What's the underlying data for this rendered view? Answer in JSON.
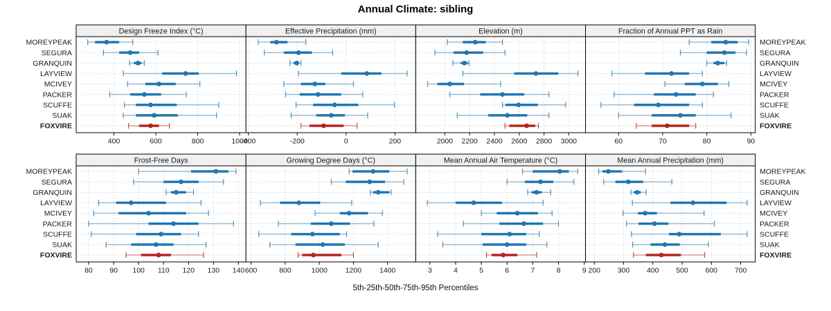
{
  "title": "Annual Climate: sibling",
  "xlabel": "5th-25th-50th-75th-95th Percentiles",
  "sites": [
    "MOREYPEAK",
    "SEGURA",
    "GRANQUIN",
    "LAYVIEW",
    "MCIVEY",
    "PACKER",
    "SCUFFE",
    "SUAK",
    "FOXVIRE"
  ],
  "highlight_site": "FOXVIRE",
  "colors": {
    "series": "#1f77b4",
    "highlight": "#b3251e",
    "header_bg": "#f0f0f0",
    "panel_border": "#000000",
    "grid": "#c9c9c9",
    "text": "#1a1a1a"
  },
  "chart_data": {
    "type": "trellis-dotplot-percentiles",
    "percentile_labels": [
      "5th",
      "25th",
      "50th",
      "75th",
      "95th"
    ],
    "panels": [
      {
        "id": "design-freeze-index",
        "title": "Design Freeze Index (°C)",
        "grid_row": 0,
        "grid_col": 0,
        "xlim": [
          220,
          1030
        ],
        "ticks": [
          400,
          600,
          800,
          1000
        ],
        "values": {
          "MOREYPEAK": [
            275,
            310,
            365,
            425,
            490
          ],
          "SEGURA": [
            350,
            425,
            478,
            520,
            610
          ],
          "GRANQUIN": [
            475,
            495,
            515,
            532,
            545
          ],
          "LAYVIEW": [
            445,
            630,
            742,
            805,
            985
          ],
          "MCIVEY": [
            465,
            550,
            615,
            695,
            810
          ],
          "PACKER": [
            380,
            478,
            545,
            625,
            745
          ],
          "SCUFFE": [
            450,
            505,
            575,
            700,
            900
          ],
          "SUAK": [
            445,
            505,
            592,
            705,
            890
          ],
          "FOXVIRE": [
            470,
            520,
            575,
            615,
            665
          ]
        }
      },
      {
        "id": "effective-precipitation",
        "title": "Effective Precipitation (mm)",
        "grid_row": 0,
        "grid_col": 1,
        "xlim": [
          -410,
          285
        ],
        "ticks": [
          -400,
          -200,
          0,
          200
        ],
        "values": {
          "MOREYPEAK": [
            -360,
            -310,
            -285,
            -240,
            -165
          ],
          "SEGURA": [
            -335,
            -255,
            -195,
            -140,
            -55
          ],
          "GRANQUIN": [
            -230,
            -215,
            -202,
            -192,
            -185
          ],
          "LAYVIEW": [
            -195,
            -20,
            85,
            145,
            250
          ],
          "MCIVEY": [
            -255,
            -185,
            -128,
            -85,
            30
          ],
          "PACKER": [
            -248,
            -190,
            -115,
            -20,
            68
          ],
          "SCUFFE": [
            -205,
            -135,
            -47,
            50,
            198
          ],
          "SUAK": [
            -225,
            -122,
            -61,
            -5,
            88
          ],
          "FOXVIRE": [
            -185,
            -150,
            -92,
            -10,
            45
          ]
        }
      },
      {
        "id": "elevation",
        "title": "Elevation (m)",
        "grid_row": 0,
        "grid_col": 2,
        "xlim": [
          1765,
          3135
        ],
        "ticks": [
          2000,
          2200,
          2400,
          2600,
          2800,
          3000
        ],
        "values": {
          "MOREYPEAK": [
            2020,
            2145,
            2245,
            2330,
            2465
          ],
          "SEGURA": [
            1920,
            2070,
            2175,
            2310,
            2485
          ],
          "GRANQUIN": [
            2065,
            2128,
            2158,
            2185,
            2195
          ],
          "LAYVIEW": [
            2145,
            2560,
            2735,
            2915,
            3075
          ],
          "MCIVEY": [
            1860,
            1940,
            2040,
            2155,
            2450
          ],
          "PACKER": [
            2040,
            2285,
            2465,
            2640,
            2840
          ],
          "SCUFFE": [
            2465,
            2490,
            2595,
            2750,
            2975
          ],
          "SUAK": [
            2100,
            2350,
            2505,
            2665,
            2840
          ],
          "FOXVIRE": [
            2485,
            2520,
            2660,
            2730,
            2755
          ]
        }
      },
      {
        "id": "fraction-ppt-as-rain",
        "title": "Fraction of Annual PPT as Rain",
        "grid_row": 0,
        "grid_col": 3,
        "xlim": [
          52.5,
          91
        ],
        "ticks": [
          60,
          70,
          80,
          90
        ],
        "values": {
          "MOREYPEAK": [
            76,
            81,
            84.3,
            87,
            89.5
          ],
          "SEGURA": [
            74,
            80,
            84,
            86.5,
            89
          ],
          "GRANQUIN": [
            80,
            81.5,
            82.5,
            84,
            84.5
          ],
          "LAYVIEW": [
            58.5,
            66,
            72,
            76,
            79
          ],
          "MCIVEY": [
            70.5,
            75,
            79,
            82.5,
            85
          ],
          "PACKER": [
            59,
            68,
            73,
            77.5,
            81.5
          ],
          "SCUFFE": [
            56,
            63.5,
            69,
            76,
            79
          ],
          "SUAK": [
            60,
            67.5,
            74,
            77.5,
            85.5
          ],
          "FOXVIRE": [
            64,
            67.5,
            71,
            76,
            77.5
          ]
        }
      },
      {
        "id": "frost-free-days",
        "title": "Frost-Free Days",
        "grid_row": 1,
        "grid_col": 0,
        "xlim": [
          75,
          143
        ],
        "ticks": [
          80,
          90,
          100,
          110,
          120,
          130,
          140
        ],
        "values": {
          "MOREYPEAK": [
            100,
            121,
            131,
            136,
            139
          ],
          "SEGURA": [
            98,
            110,
            117,
            124,
            134
          ],
          "GRANQUIN": [
            111,
            113,
            115,
            119,
            122
          ],
          "LAYVIEW": [
            84,
            91,
            97,
            111,
            125
          ],
          "MCIVEY": [
            82,
            92,
            104,
            119,
            128
          ],
          "PACKER": [
            80,
            104,
            114,
            124,
            138
          ],
          "SCUFFE": [
            81,
            99,
            109,
            117,
            124
          ],
          "SUAK": [
            87,
            97,
            107,
            114,
            127
          ],
          "FOXVIRE": [
            95,
            101,
            108,
            113,
            126
          ]
        }
      },
      {
        "id": "growing-degree-days",
        "title": "Growing Degree Days (°C)",
        "grid_row": 1,
        "grid_col": 1,
        "xlim": [
          570,
          1565
        ],
        "ticks": [
          600,
          800,
          1000,
          1200,
          1400
        ],
        "values": {
          "MOREYPEAK": [
            1175,
            1195,
            1315,
            1410,
            1515
          ],
          "SEGURA": [
            1070,
            1155,
            1295,
            1385,
            1495
          ],
          "GRANQUIN": [
            1300,
            1315,
            1345,
            1410,
            1420
          ],
          "LAYVIEW": [
            655,
            770,
            880,
            1005,
            1190
          ],
          "MCIVEY": [
            975,
            1120,
            1175,
            1285,
            1370
          ],
          "PACKER": [
            760,
            950,
            1070,
            1180,
            1320
          ],
          "SCUFFE": [
            645,
            835,
            960,
            1120,
            1160
          ],
          "SUAK": [
            710,
            860,
            1020,
            1150,
            1345
          ],
          "FOXVIRE": [
            875,
            900,
            965,
            1130,
            1200
          ]
        }
      },
      {
        "id": "mean-annual-air-temperature",
        "title": "Mean Annual Air Temperature (°C)",
        "grid_row": 1,
        "grid_col": 2,
        "xlim": [
          2.45,
          9.05
        ],
        "ticks": [
          3,
          4,
          5,
          6,
          7,
          8,
          9
        ],
        "values": {
          "MOREYPEAK": [
            6.6,
            7.0,
            8.05,
            8.4,
            8.75
          ],
          "SEGURA": [
            6.0,
            6.7,
            7.3,
            7.8,
            8.6
          ],
          "GRANQUIN": [
            6.8,
            6.95,
            7.15,
            7.35,
            7.7
          ],
          "LAYVIEW": [
            2.9,
            4.0,
            4.7,
            5.8,
            7.4
          ],
          "MCIVEY": [
            5.0,
            5.6,
            6.4,
            7.2,
            7.75
          ],
          "PACKER": [
            4.3,
            5.7,
            6.65,
            7.4,
            8.0
          ],
          "SCUFFE": [
            3.3,
            5.0,
            6.1,
            6.75,
            7.25
          ],
          "SUAK": [
            3.5,
            5.05,
            6.0,
            6.75,
            7.55
          ],
          "FOXVIRE": [
            5.2,
            5.4,
            5.85,
            6.4,
            7.15
          ]
        }
      },
      {
        "id": "mean-annual-precipitation",
        "title": "Mean Annual Precipitation (mm)",
        "grid_row": 1,
        "grid_col": 3,
        "xlim": [
          170,
          750
        ],
        "ticks": [
          200,
          300,
          400,
          500,
          600,
          700
        ],
        "values": {
          "MOREYPEAK": [
            215,
            228,
            248,
            295,
            375
          ],
          "SEGURA": [
            232,
            272,
            316,
            367,
            465
          ],
          "GRANQUIN": [
            325,
            335,
            347,
            359,
            377
          ],
          "LAYVIEW": [
            330,
            460,
            537,
            652,
            722
          ],
          "MCIVEY": [
            298,
            349,
            374,
            414,
            575
          ],
          "PACKER": [
            310,
            351,
            406,
            453,
            610
          ],
          "SCUFFE": [
            327,
            455,
            490,
            632,
            722
          ],
          "SUAK": [
            331,
            392,
            441,
            492,
            590
          ],
          "FOXVIRE": [
            334,
            376,
            429,
            496,
            577
          ]
        }
      }
    ]
  }
}
